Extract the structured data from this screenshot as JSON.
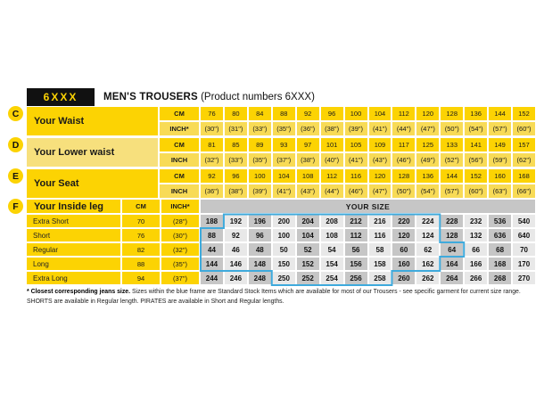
{
  "header": {
    "code": "6XXX",
    "title": "MEN'S TROUSERS",
    "subtitle": "(Product numbers 6XXX)"
  },
  "colors": {
    "yellow": "#FCD303",
    "yellow_light": "#F8DB56",
    "yellow_pale": "#F7E07D",
    "gray_dark": "#C6C6C6",
    "gray_light": "#E8E8E8",
    "blue_frame": "#3FAADC",
    "black": "#111111"
  },
  "measure_sections": [
    {
      "badge": "C",
      "label": "Your Waist",
      "unit_cm": "CM",
      "unit_inch": "INCH*",
      "label_style": "bright",
      "cm": [
        "76",
        "80",
        "84",
        "88",
        "92",
        "96",
        "100",
        "104",
        "112",
        "120",
        "128",
        "136",
        "144",
        "152"
      ],
      "inch": [
        "(30\")",
        "(31\")",
        "(33\")",
        "(35\")",
        "(36\")",
        "(38\")",
        "(39\")",
        "(41\")",
        "(44\")",
        "(47\")",
        "(50\")",
        "(54\")",
        "(57\")",
        "(60\")"
      ]
    },
    {
      "badge": "D",
      "label": "Your Lower waist",
      "unit_cm": "CM",
      "unit_inch": "INCH",
      "label_style": "pale",
      "cm": [
        "81",
        "85",
        "89",
        "93",
        "97",
        "101",
        "105",
        "109",
        "117",
        "125",
        "133",
        "141",
        "149",
        "157"
      ],
      "inch": [
        "(32\")",
        "(33\")",
        "(35\")",
        "(37\")",
        "(38\")",
        "(40\")",
        "(41\")",
        "(43\")",
        "(46\")",
        "(49\")",
        "(52\")",
        "(56\")",
        "(59\")",
        "(62\")"
      ]
    },
    {
      "badge": "E",
      "label": "Your Seat",
      "unit_cm": "CM",
      "unit_inch": "INCH",
      "label_style": "bright",
      "cm": [
        "92",
        "96",
        "100",
        "104",
        "108",
        "112",
        "116",
        "120",
        "128",
        "136",
        "144",
        "152",
        "160",
        "168"
      ],
      "inch": [
        "(36\")",
        "(38\")",
        "(39\")",
        "(41\")",
        "(43\")",
        "(44\")",
        "(46\")",
        "(47\")",
        "(50\")",
        "(54\")",
        "(57\")",
        "(60\")",
        "(63\")",
        "(66\")"
      ]
    }
  ],
  "inside_leg": {
    "badge": "F",
    "label": "Your Inside leg",
    "col_cm": "CM",
    "col_inch": "INCH*",
    "size_header": "YOUR SIZE",
    "rows": [
      {
        "label": "Extra Short",
        "cm": "70",
        "inch": "(28\")",
        "sizes": [
          "188",
          "192",
          "196",
          "200",
          "204",
          "208",
          "212",
          "216",
          "220",
          "224",
          "228",
          "232",
          "536",
          "540"
        ]
      },
      {
        "label": "Short",
        "cm": "76",
        "inch": "(30\")",
        "sizes": [
          "88",
          "92",
          "96",
          "100",
          "104",
          "108",
          "112",
          "116",
          "120",
          "124",
          "128",
          "132",
          "636",
          "640"
        ]
      },
      {
        "label": "Regular",
        "cm": "82",
        "inch": "(32\")",
        "sizes": [
          "44",
          "46",
          "48",
          "50",
          "52",
          "54",
          "56",
          "58",
          "60",
          "62",
          "64",
          "66",
          "68",
          "70"
        ]
      },
      {
        "label": "Long",
        "cm": "88",
        "inch": "(35\")",
        "sizes": [
          "144",
          "146",
          "148",
          "150",
          "152",
          "154",
          "156",
          "158",
          "160",
          "162",
          "164",
          "166",
          "168",
          "170"
        ]
      },
      {
        "label": "Extra Long",
        "cm": "94",
        "inch": "(37\")",
        "sizes": [
          "244",
          "246",
          "248",
          "250",
          "252",
          "254",
          "256",
          "258",
          "260",
          "262",
          "264",
          "266",
          "268",
          "270"
        ]
      }
    ],
    "standard_stock_columns": [
      [
        2,
        10
      ],
      [
        1,
        10
      ],
      [
        1,
        11
      ],
      [
        1,
        10
      ],
      [
        4,
        8
      ]
    ]
  },
  "footnote": {
    "bold": "* Closest corresponding jeans size.",
    "text": "Sizes within the blue frame are Standard Stock Items which are available for most of our Trousers - see specific garment for current size range. SHORTS are available in Regular length. PIRATES are available in Short and Regular lengths."
  }
}
